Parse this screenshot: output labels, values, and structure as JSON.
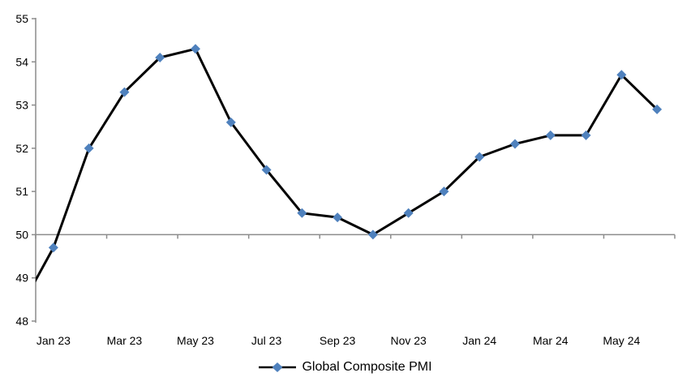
{
  "chart_data": {
    "type": "line",
    "title": "",
    "categories": [
      "Dec 22",
      "Jan 23",
      "Feb 23",
      "Mar 23",
      "Apr 23",
      "May 23",
      "Jun 23",
      "Jul 23",
      "Aug 23",
      "Sep 23",
      "Oct 23",
      "Nov 23",
      "Dec 23",
      "Jan 24",
      "Feb 24",
      "Mar 24",
      "Apr 24",
      "May 24",
      "Jun 24"
    ],
    "series": [
      {
        "name": "Global Composite PMI",
        "values": [
          48.2,
          49.7,
          52.0,
          53.3,
          54.1,
          54.3,
          52.6,
          51.5,
          50.5,
          50.4,
          50.0,
          50.5,
          51.0,
          51.8,
          52.1,
          52.3,
          52.3,
          53.7,
          52.9
        ]
      }
    ],
    "first_category_clipped_at_left_axis": true,
    "x_axis": {
      "tick_labels": [
        "Jan 23",
        "Mar 23",
        "May 23",
        "Jul 23",
        "Sep 23",
        "Nov 23",
        "Jan 24",
        "Mar 24",
        "May 24"
      ],
      "label_interval_months": 2,
      "axis_crosses_at_value": 50,
      "boundary_tick_every_categories": 2
    },
    "y_axis": {
      "min": 48,
      "max": 55,
      "tick_step": 1,
      "tick_labels": [
        "48",
        "49",
        "50",
        "51",
        "52",
        "53",
        "54",
        "55"
      ]
    },
    "grid": "none",
    "legend": {
      "position": "bottom-center",
      "label": "Global Composite PMI",
      "marker": "diamond-on-line"
    },
    "colors": {
      "series_line": "#000000",
      "marker_fill": "#4F81BD",
      "axis": "#8C8C8C",
      "label_text": "#000000",
      "background": "#FFFFFF"
    }
  }
}
